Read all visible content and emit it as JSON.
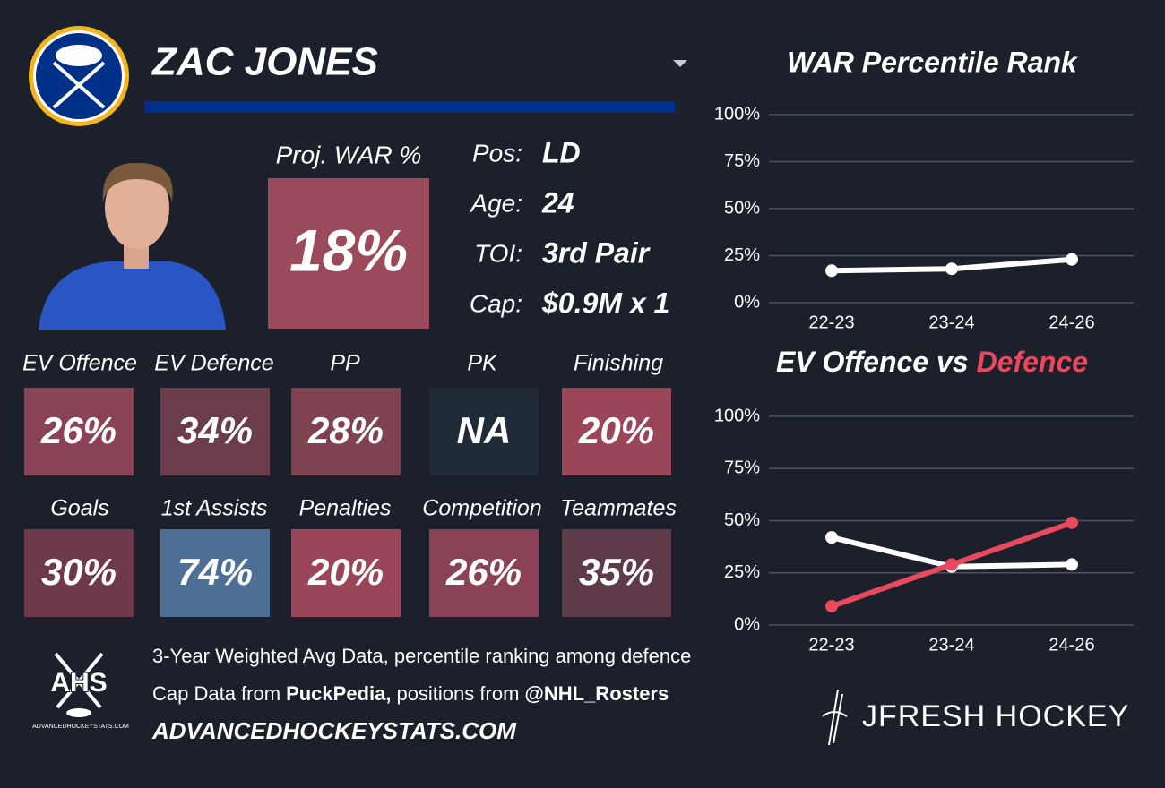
{
  "player": {
    "name": "ZAC JONES",
    "war_label": "Proj. WAR %",
    "war_value": "18%",
    "war_color": "#9b4a5c",
    "info": [
      {
        "label": "Pos:",
        "value": "LD"
      },
      {
        "label": "Age:",
        "value": "24"
      },
      {
        "label": "TOI:",
        "value": "3rd Pair"
      },
      {
        "label": "Cap:",
        "value": "$0.9M x 1"
      }
    ]
  },
  "tiles": [
    {
      "label": "EV Offence",
      "value": "26%",
      "color": "#8a4256"
    },
    {
      "label": "EV Defence",
      "value": "34%",
      "color": "#6b3c4c"
    },
    {
      "label": "PP",
      "value": "28%",
      "color": "#7f4253"
    },
    {
      "label": "PK",
      "value": "NA",
      "color": "#1f2b38"
    },
    {
      "label": "Finishing",
      "value": "20%",
      "color": "#9b4558"
    },
    {
      "label": "Goals",
      "value": "30%",
      "color": "#6e3a4b"
    },
    {
      "label": "1st Assists",
      "value": "74%",
      "color": "#4d6f96"
    },
    {
      "label": "Penalties",
      "value": "20%",
      "color": "#9b4558"
    },
    {
      "label": "Competition",
      "value": "26%",
      "color": "#8a4256"
    },
    {
      "label": "Teammates",
      "value": "35%",
      "color": "#5e3a4b"
    }
  ],
  "footer": {
    "line1": "3-Year Weighted Avg Data, percentile ranking among defence",
    "line2": [
      "Cap Data from",
      "PuckPedia,",
      "positions from",
      "@NHL_Rosters"
    ],
    "site": "ADVANCEDHOCKEYSTATS.COM",
    "logo": "AHS",
    "logo_caption": "ADVANCEDHOCKEYSTATS.COM",
    "brand": "JFRESH HOCKEY"
  },
  "chart_data": [
    {
      "type": "line",
      "title": "WAR Percentile Rank",
      "categories": [
        "22-23",
        "23-24",
        "24-26"
      ],
      "series": [
        {
          "color": "#ffffff",
          "values": [
            17,
            18,
            23
          ]
        }
      ],
      "ylim": [
        0,
        100
      ],
      "grid": true,
      "yticks": [
        {
          "value": 0,
          "label": "0%"
        },
        {
          "value": 25,
          "label": "25%"
        },
        {
          "value": 50,
          "label": "50%"
        },
        {
          "value": 75,
          "label": "75%"
        },
        {
          "value": 100,
          "label": "100%"
        }
      ]
    },
    {
      "type": "line",
      "title": [
        "EV Offence vs",
        "Defence"
      ],
      "title_colors": [
        "#ffffff",
        "#e8495e"
      ],
      "categories": [
        "22-23",
        "23-24",
        "24-26"
      ],
      "series": [
        {
          "color": "#ffffff",
          "values": [
            42,
            28,
            29
          ]
        },
        {
          "color": "#e8495e",
          "values": [
            9,
            29,
            49
          ]
        }
      ],
      "ylim": [
        0,
        100
      ],
      "grid": true,
      "yticks": [
        {
          "value": 0,
          "label": "0%"
        },
        {
          "value": 25,
          "label": "25%"
        },
        {
          "value": 50,
          "label": "50%"
        },
        {
          "value": 75,
          "label": "75%"
        },
        {
          "value": 100,
          "label": "100%"
        }
      ]
    }
  ]
}
